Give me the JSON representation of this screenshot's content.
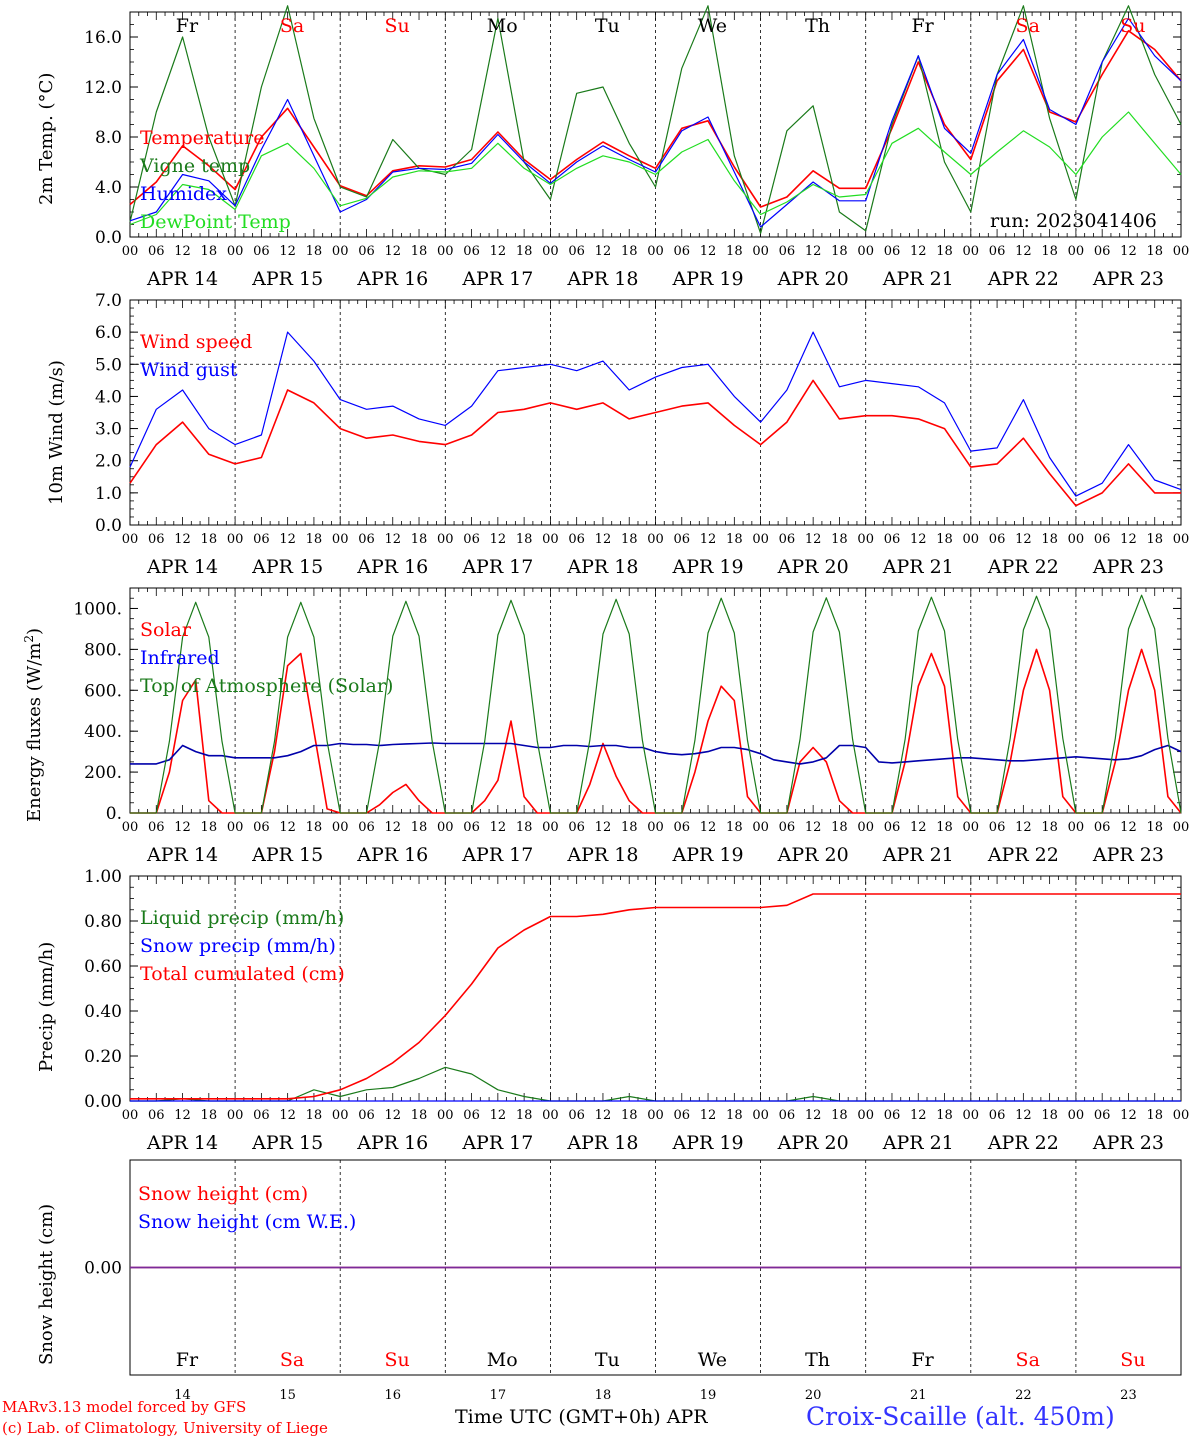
{
  "days": {
    "short": [
      "Fr",
      "Sa",
      "Su",
      "Mo",
      "Tu",
      "We",
      "Th",
      "Fr",
      "Sa",
      "Su"
    ],
    "weekend": [
      false,
      true,
      true,
      false,
      false,
      false,
      false,
      false,
      true,
      true
    ],
    "dates": [
      "APR 14",
      "APR 15",
      "APR 16",
      "APR 17",
      "APR 18",
      "APR 19",
      "APR 20",
      "APR 21",
      "APR 22",
      "APR 23"
    ],
    "numbers": [
      "14",
      "15",
      "16",
      "17",
      "18",
      "19",
      "20",
      "21",
      "22",
      "23"
    ],
    "hour_ticks": [
      "00",
      "06",
      "12",
      "18"
    ],
    "end_tick": "00"
  },
  "colors": {
    "red": "#ff0000",
    "darkgreen": "#1a7a1a",
    "blue": "#0000ff",
    "lightgreen": "#22dd22",
    "purple": "#7a2a9a",
    "navy": "#0000aa"
  },
  "panel1": {
    "ylabel": "2m Temp. (°C)",
    "run_label": "run: 2023041406",
    "legend": [
      "Temperature",
      "Vigne temp",
      "Humidex",
      "DewPoint Temp"
    ]
  },
  "panel2": {
    "ylabel": "10m Wind (m/s)",
    "legend": [
      "Wind speed",
      "Wind gust"
    ]
  },
  "panel3": {
    "ylabel_main": "Energy fluxes (W/m",
    "ylabel_sup": "2",
    "ylabel_end": ")",
    "legend": [
      "Solar",
      "Infrared",
      "Top of Atmosphere (Solar)"
    ]
  },
  "panel4": {
    "ylabel": "Precip (mm/h)",
    "legend": [
      "Liquid precip (mm/h)",
      "Snow precip (mm/h)",
      "Total cumulated (cm)"
    ]
  },
  "panel5": {
    "ylabel": "Snow height (cm)",
    "legend": [
      "Snow height (cm)",
      "Snow height (cm W.E.)"
    ]
  },
  "footer": {
    "model": "MARv3.13 model forced by GFS",
    "credit": "(c) Lab. of Climatology, University of Liege",
    "xlabel": "Time UTC (GMT+0h)",
    "month": "APR",
    "station": "Croix-Scaille (alt. 450m)"
  },
  "chart_data": [
    {
      "type": "line",
      "ylabel": "2m Temp. (°C)",
      "ylim": [
        0,
        18
      ],
      "yticks": [
        "0.0",
        "4.0",
        "8.0",
        "12.0",
        "16.0"
      ],
      "x_hours": [
        0,
        6,
        12,
        18,
        24,
        30,
        36,
        42,
        48,
        54,
        60,
        66,
        72,
        78,
        84,
        90,
        96,
        102,
        108,
        114,
        120,
        126,
        132,
        138,
        144,
        150,
        156,
        162,
        168,
        174,
        180,
        186,
        192,
        198,
        204,
        210,
        216,
        222,
        228,
        234,
        240
      ],
      "series": [
        {
          "name": "Temperature",
          "color": "red",
          "values": [
            2.6,
            4.4,
            7.3,
            5.7,
            3.8,
            8.0,
            10.3,
            7.2,
            4.1,
            3.3,
            5.3,
            5.7,
            5.6,
            6.2,
            8.4,
            6.2,
            4.6,
            6.2,
            7.6,
            6.5,
            5.5,
            8.7,
            9.3,
            5.6,
            2.4,
            3.2,
            5.3,
            3.9,
            3.9,
            8.7,
            14.0,
            9.0,
            6.2,
            12.5,
            15.0,
            10.0,
            9.2,
            13.0,
            16.5,
            15.0,
            12.5
          ]
        },
        {
          "name": "Vigne temp",
          "color": "darkgreen",
          "values": [
            1.2,
            10.0,
            16.0,
            8.0,
            2.5,
            12.0,
            18.5,
            9.5,
            4.0,
            3.2,
            7.8,
            5.5,
            5.0,
            7.0,
            17.5,
            6.0,
            3.0,
            11.5,
            12.0,
            7.5,
            4.0,
            13.5,
            18.5,
            6.5,
            0.3,
            8.5,
            10.5,
            2.0,
            0.5,
            9.0,
            14.5,
            6.0,
            2.0,
            13.0,
            18.5,
            9.5,
            3.0,
            14.0,
            18.5,
            13.0,
            9.0
          ]
        },
        {
          "name": "Humidex",
          "color": "blue",
          "values": [
            1.3,
            2.0,
            5.0,
            4.5,
            2.5,
            7.0,
            11.0,
            6.5,
            2.0,
            3.0,
            5.2,
            5.5,
            5.4,
            5.9,
            8.2,
            6.0,
            4.3,
            6.0,
            7.3,
            6.2,
            5.2,
            8.5,
            9.6,
            5.2,
            0.8,
            2.6,
            4.4,
            2.9,
            2.9,
            9.3,
            14.5,
            8.7,
            6.7,
            13.0,
            15.8,
            10.2,
            9.0,
            14.0,
            17.5,
            14.5,
            12.5
          ]
        },
        {
          "name": "DewPoint Temp",
          "color": "lightgreen",
          "values": [
            1.0,
            1.8,
            4.2,
            3.8,
            2.2,
            6.5,
            7.5,
            5.5,
            2.5,
            3.1,
            4.8,
            5.3,
            5.2,
            5.5,
            7.5,
            5.5,
            4.2,
            5.5,
            6.5,
            6.0,
            5.0,
            6.8,
            7.8,
            4.5,
            1.8,
            2.8,
            4.2,
            3.2,
            3.4,
            7.5,
            8.7,
            6.8,
            5.0,
            6.8,
            8.5,
            7.2,
            5.0,
            8.0,
            10.0,
            7.5,
            5.0
          ]
        }
      ]
    },
    {
      "type": "line",
      "ylabel": "10m Wind (m/s)",
      "ylim": [
        0,
        7
      ],
      "yticks": [
        "0.0",
        "1.0",
        "2.0",
        "3.0",
        "4.0",
        "5.0",
        "6.0",
        "7.0"
      ],
      "x_hours": [
        0,
        6,
        12,
        18,
        24,
        30,
        36,
        42,
        48,
        54,
        60,
        66,
        72,
        78,
        84,
        90,
        96,
        102,
        108,
        114,
        120,
        126,
        132,
        138,
        144,
        150,
        156,
        162,
        168,
        174,
        180,
        186,
        192,
        198,
        204,
        210,
        216,
        222,
        228,
        234,
        240
      ],
      "series": [
        {
          "name": "Wind speed",
          "color": "red",
          "values": [
            1.3,
            2.5,
            3.2,
            2.2,
            1.9,
            2.1,
            4.2,
            3.8,
            3.0,
            2.7,
            2.8,
            2.6,
            2.5,
            2.8,
            3.5,
            3.6,
            3.8,
            3.6,
            3.8,
            3.3,
            3.5,
            3.7,
            3.8,
            3.1,
            2.5,
            3.2,
            4.5,
            3.3,
            3.4,
            3.4,
            3.3,
            3.0,
            1.8,
            1.9,
            2.7,
            1.6,
            0.6,
            1.0,
            1.9,
            1.0,
            1.0
          ]
        },
        {
          "name": "Wind gust",
          "color": "blue",
          "values": [
            1.8,
            3.6,
            4.2,
            3.0,
            2.5,
            2.8,
            6.0,
            5.1,
            3.9,
            3.6,
            3.7,
            3.3,
            3.1,
            3.7,
            4.8,
            4.9,
            5.0,
            4.8,
            5.1,
            4.2,
            4.6,
            4.9,
            5.0,
            4.0,
            3.2,
            4.2,
            6.0,
            4.3,
            4.5,
            4.4,
            4.3,
            3.8,
            2.3,
            2.4,
            3.9,
            2.1,
            0.9,
            1.3,
            2.5,
            1.4,
            1.1
          ]
        }
      ]
    },
    {
      "type": "line",
      "ylabel": "Energy fluxes (W/m2)",
      "ylim": [
        0,
        1100
      ],
      "yticks": [
        "0.",
        "200.",
        "400.",
        "600.",
        "800.",
        "1000."
      ],
      "x_hours": [
        0,
        3,
        6,
        9,
        12,
        15,
        18,
        21,
        24,
        27,
        30,
        33,
        36,
        39,
        42,
        45,
        48,
        51,
        54,
        57,
        60,
        63,
        66,
        69,
        72,
        75,
        78,
        81,
        84,
        87,
        90,
        93,
        96,
        99,
        102,
        105,
        108,
        111,
        114,
        117,
        120,
        123,
        126,
        129,
        132,
        135,
        138,
        141,
        144,
        147,
        150,
        153,
        156,
        159,
        162,
        165,
        168,
        171,
        174,
        177,
        180,
        183,
        186,
        189,
        192,
        195,
        198,
        201,
        204,
        207,
        210,
        213,
        216,
        219,
        222,
        225,
        228,
        231,
        234,
        237,
        240
      ],
      "series": [
        {
          "name": "Solar",
          "color": "red",
          "values": [
            0,
            0,
            0,
            200,
            550,
            650,
            60,
            0,
            0,
            0,
            0,
            300,
            720,
            780,
            400,
            20,
            0,
            0,
            0,
            40,
            100,
            140,
            60,
            0,
            0,
            0,
            0,
            60,
            160,
            450,
            80,
            0,
            0,
            0,
            0,
            140,
            340,
            180,
            60,
            0,
            0,
            0,
            0,
            200,
            450,
            620,
            550,
            80,
            0,
            0,
            0,
            250,
            320,
            250,
            60,
            0,
            0,
            0,
            0,
            250,
            620,
            780,
            620,
            80,
            0,
            0,
            0,
            250,
            600,
            800,
            600,
            80,
            0,
            0,
            0,
            250,
            600,
            800,
            600,
            80,
            0
          ]
        },
        {
          "name": "Infrared",
          "color": "navy",
          "values": [
            240,
            240,
            240,
            260,
            330,
            300,
            280,
            280,
            270,
            270,
            270,
            270,
            280,
            300,
            330,
            330,
            340,
            335,
            335,
            330,
            335,
            338,
            340,
            342,
            340,
            340,
            340,
            340,
            340,
            340,
            330,
            320,
            320,
            330,
            330,
            325,
            330,
            330,
            320,
            320,
            300,
            290,
            285,
            290,
            300,
            320,
            320,
            310,
            290,
            260,
            250,
            240,
            250,
            270,
            330,
            330,
            320,
            250,
            245,
            250,
            255,
            260,
            265,
            270,
            270,
            265,
            260,
            255,
            255,
            260,
            265,
            270,
            275,
            270,
            265,
            260,
            265,
            280,
            310,
            330,
            300
          ]
        },
        {
          "name": "Top of Atmosphere (Solar)",
          "color": "darkgreen",
          "values": [
            0,
            0,
            0,
            350,
            860,
            1030,
            860,
            350,
            0,
            0,
            0,
            350,
            860,
            1030,
            860,
            350,
            0,
            0,
            0,
            350,
            865,
            1035,
            865,
            350,
            0,
            0,
            0,
            350,
            870,
            1040,
            870,
            350,
            0,
            0,
            0,
            355,
            875,
            1045,
            875,
            355,
            0,
            0,
            0,
            355,
            880,
            1050,
            880,
            355,
            0,
            0,
            0,
            360,
            885,
            1052,
            885,
            360,
            0,
            0,
            0,
            360,
            890,
            1055,
            890,
            360,
            0,
            0,
            0,
            365,
            895,
            1060,
            895,
            365,
            0,
            0,
            0,
            365,
            900,
            1065,
            900,
            365,
            0
          ]
        }
      ]
    },
    {
      "type": "line",
      "ylabel": "Precip (mm/h)",
      "ylim": [
        0,
        1.0
      ],
      "yticks": [
        "0.00",
        "0.20",
        "0.40",
        "0.60",
        "0.80",
        "1.00"
      ],
      "x_hours": [
        0,
        6,
        12,
        18,
        24,
        30,
        36,
        42,
        48,
        54,
        60,
        66,
        72,
        78,
        84,
        90,
        96,
        102,
        108,
        114,
        120,
        126,
        132,
        138,
        144,
        150,
        156,
        162,
        168,
        174,
        180,
        186,
        192,
        198,
        204,
        210,
        216,
        222,
        228,
        234,
        240
      ],
      "series": [
        {
          "name": "Liquid precip (mm/h)",
          "color": "darkgreen",
          "values": [
            0,
            0,
            0.01,
            0,
            0,
            0,
            0,
            0.05,
            0.02,
            0.05,
            0.06,
            0.1,
            0.15,
            0.12,
            0.05,
            0.02,
            0,
            0,
            0,
            0.02,
            0,
            0,
            0,
            0,
            0,
            0,
            0.02,
            0,
            0,
            0,
            0,
            0,
            0,
            0,
            0,
            0,
            0,
            0,
            0,
            0,
            0
          ]
        },
        {
          "name": "Snow precip (mm/h)",
          "color": "blue",
          "values": [
            0,
            0,
            0,
            0,
            0,
            0,
            0,
            0,
            0,
            0,
            0,
            0,
            0,
            0,
            0,
            0,
            0,
            0,
            0,
            0,
            0,
            0,
            0,
            0,
            0,
            0,
            0,
            0,
            0,
            0,
            0,
            0,
            0,
            0,
            0,
            0,
            0,
            0,
            0,
            0,
            0
          ]
        },
        {
          "name": "Total cumulated (cm)",
          "color": "red",
          "values": [
            0.01,
            0.01,
            0.01,
            0.01,
            0.01,
            0.01,
            0.01,
            0.02,
            0.05,
            0.1,
            0.17,
            0.26,
            0.38,
            0.52,
            0.68,
            0.76,
            0.82,
            0.82,
            0.83,
            0.85,
            0.86,
            0.86,
            0.86,
            0.86,
            0.86,
            0.87,
            0.92,
            0.92,
            0.92,
            0.92,
            0.92,
            0.92,
            0.92,
            0.92,
            0.92,
            0.92,
            0.92,
            0.92,
            0.92,
            0.92,
            0.92
          ]
        }
      ]
    },
    {
      "type": "line",
      "ylabel": "Snow height (cm)",
      "yticks": [
        "0.00"
      ],
      "x_hours": [
        0,
        240
      ],
      "series": [
        {
          "name": "Snow height (cm)",
          "color": "red",
          "values": [
            0,
            0
          ]
        },
        {
          "name": "Snow height (cm W.E.)",
          "color": "blue",
          "values": [
            0,
            0
          ]
        }
      ]
    }
  ]
}
